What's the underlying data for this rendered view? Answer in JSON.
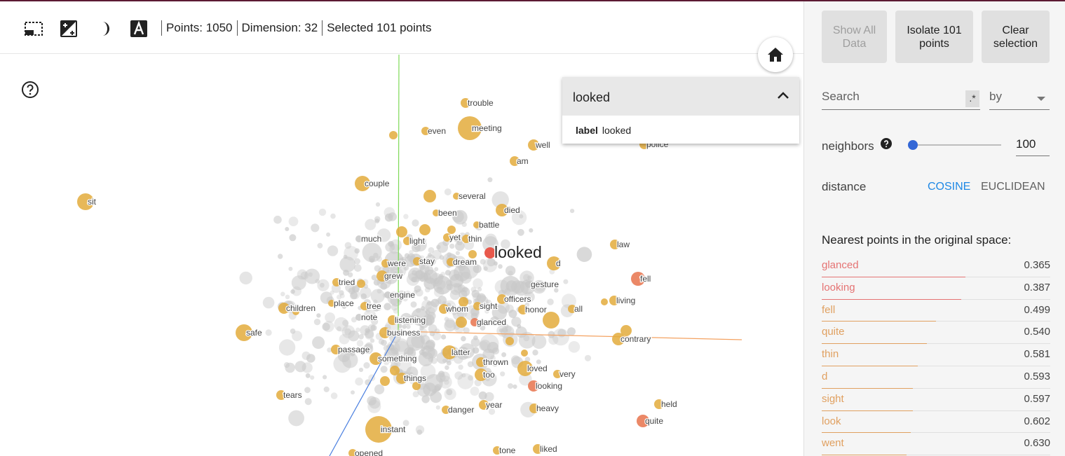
{
  "toolbar": {
    "tools": [
      {
        "name": "selection-box-icon"
      },
      {
        "name": "night-mode-icon"
      },
      {
        "name": "contrast-icon"
      },
      {
        "name": "label-icon"
      }
    ],
    "points": "Points: 1050",
    "dimension": "Dimension: 32",
    "selected": "Selected 101 points"
  },
  "search_dropdown": {
    "title": "looked",
    "row_key": "label",
    "row_value": "looked"
  },
  "panel": {
    "show_all": [
      "Show All",
      "Data"
    ],
    "isolate": [
      "Isolate 101",
      "points"
    ],
    "clear": [
      "Clear",
      "selection"
    ],
    "search_placeholder": "Search",
    "regex_label": ".*",
    "by_label": "by",
    "neighbors_label": "neighbors",
    "neighbors_value": "100",
    "distance_label": "distance",
    "cosine_label": "COSINE",
    "euclidean_label": "EUCLIDEAN",
    "nearest_title": "Nearest points in the original space:",
    "nearest": [
      {
        "label": "glanced",
        "value": "0.365",
        "color": "#e57373",
        "frac": 0.63
      },
      {
        "label": "looking",
        "value": "0.387",
        "color": "#e57373",
        "frac": 0.61
      },
      {
        "label": "fell",
        "value": "0.499",
        "color": "#e0a060",
        "frac": 0.5
      },
      {
        "label": "quite",
        "value": "0.540",
        "color": "#e0a060",
        "frac": 0.46
      },
      {
        "label": "thin",
        "value": "0.581",
        "color": "#e0a060",
        "frac": 0.42
      },
      {
        "label": "d",
        "value": "0.593",
        "color": "#e0a060",
        "frac": 0.4
      },
      {
        "label": "sight",
        "value": "0.597",
        "color": "#e0a060",
        "frac": 0.4
      },
      {
        "label": "look",
        "value": "0.602",
        "color": "#e0a060",
        "frac": 0.39
      },
      {
        "label": "went",
        "value": "0.630",
        "color": "#e0a060",
        "frac": 0.37
      }
    ]
  },
  "plot": {
    "focus_label": "looked",
    "labels": [
      "trouble",
      "even",
      "meeting",
      "well",
      "police",
      "am",
      "couple",
      "several",
      "sit",
      "died",
      "been",
      "battle",
      "much",
      "light",
      "yet",
      "thin",
      "looked",
      "law",
      "were",
      "stay",
      "dream",
      "d",
      "grew",
      "fell",
      "tried",
      "gesture",
      "engine",
      "children",
      "place",
      "tree",
      "officers",
      "whom",
      "sight",
      "honor",
      "all",
      "living",
      "note",
      "listening",
      "glanced",
      "safe",
      "business",
      "contrary",
      "passage",
      "latter",
      "something",
      "thrown",
      "loved",
      "very",
      "too",
      "things",
      "looking",
      "tears",
      "year",
      "danger",
      "heavy",
      "held",
      "quite",
      "instant",
      "tone",
      "liked",
      "opened"
    ],
    "colors": {
      "selected": "#e3ab3c",
      "focus": "#e8594c",
      "gray": "#c8c8c8"
    }
  }
}
